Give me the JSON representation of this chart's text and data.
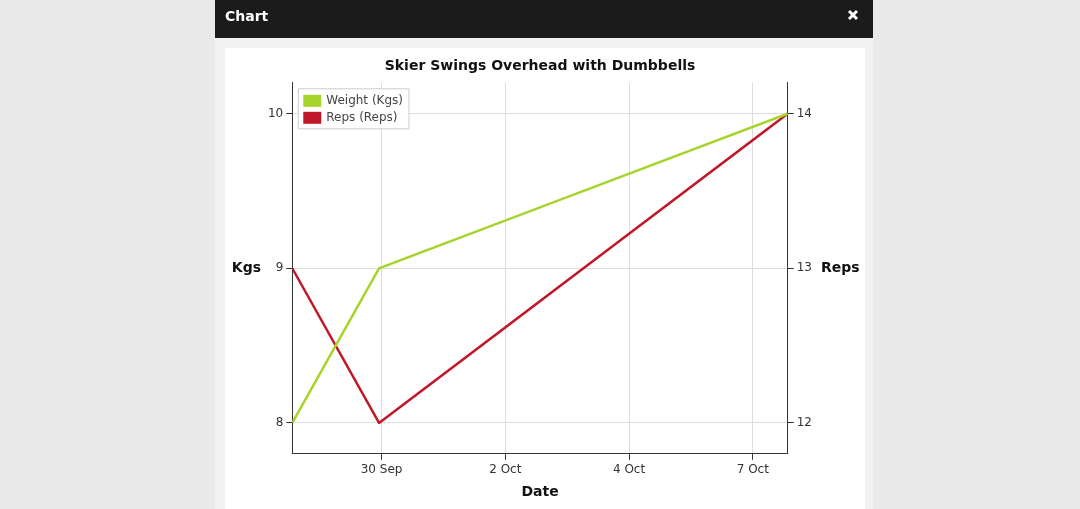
{
  "chart_data": {
    "type": "line",
    "title": "Skier Swings Overhead with Dumbbells",
    "xlabel": "Date",
    "ylabel": "Kgs",
    "y2label": "Reps",
    "annotations": [
      "Chart"
    ],
    "x": [
      "--09-29T09:30",
      "--09-30T20:00",
      "--10-07T14:30"
    ],
    "series": [
      {
        "name": "Weight (Kgs)",
        "color": "#a6d42a",
        "values": [
          8,
          9,
          10
        ]
      },
      {
        "name": "Reps (Reps)",
        "color": "#c0182a",
        "values": [
          13,
          12,
          14
        ],
        "axis": "y2"
      }
    ],
    "xlim": [
      "--09-29T09:30",
      "--10-07T14:30"
    ],
    "xticks": [
      {
        "value": "--09-30T21:00",
        "label": "30 Sep"
      },
      {
        "value": "--10-02T22:12",
        "label": "2 Oct"
      },
      {
        "value": "--10-04T23:24",
        "label": "4 Oct"
      },
      {
        "value": "--10-07T00:36",
        "label": "7 Oct"
      }
    ],
    "ylim": [
      7.8,
      10.2
    ],
    "yticks": [
      8,
      9,
      10
    ],
    "y2lim": [
      11.8,
      14.2
    ],
    "y2ticks": [
      12,
      13,
      14
    ],
    "grid": true,
    "legend": "top left",
    "marker": "none",
    "line_style": "solid"
  }
}
